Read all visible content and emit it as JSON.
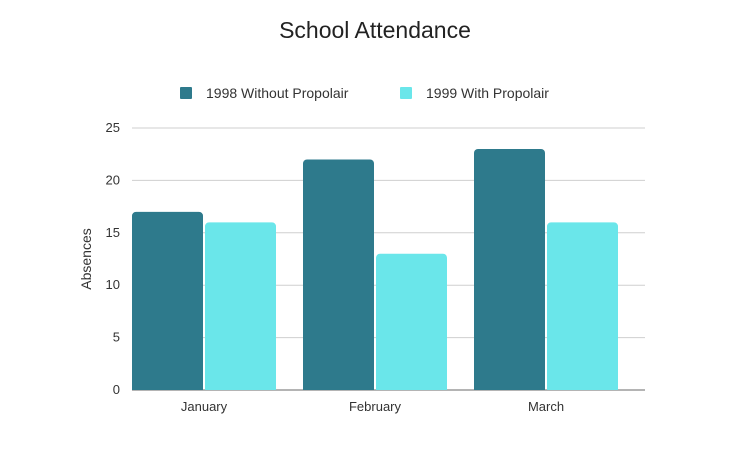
{
  "chart_data": {
    "type": "bar",
    "title": "School Attendance",
    "xlabel": "",
    "ylabel": "Absences",
    "categories": [
      "January",
      "February",
      "March"
    ],
    "series": [
      {
        "name": "1998 Without Propolair",
        "values": [
          17,
          22,
          23
        ],
        "color": "#2e7a8c"
      },
      {
        "name": "1999 With Propolair",
        "values": [
          16,
          13,
          16
        ],
        "color": "#6ae6ea"
      }
    ],
    "ylim": [
      0,
      25
    ],
    "yticks": [
      0,
      5,
      10,
      15,
      20,
      25
    ],
    "grid": true,
    "legend_position": "top-center"
  }
}
